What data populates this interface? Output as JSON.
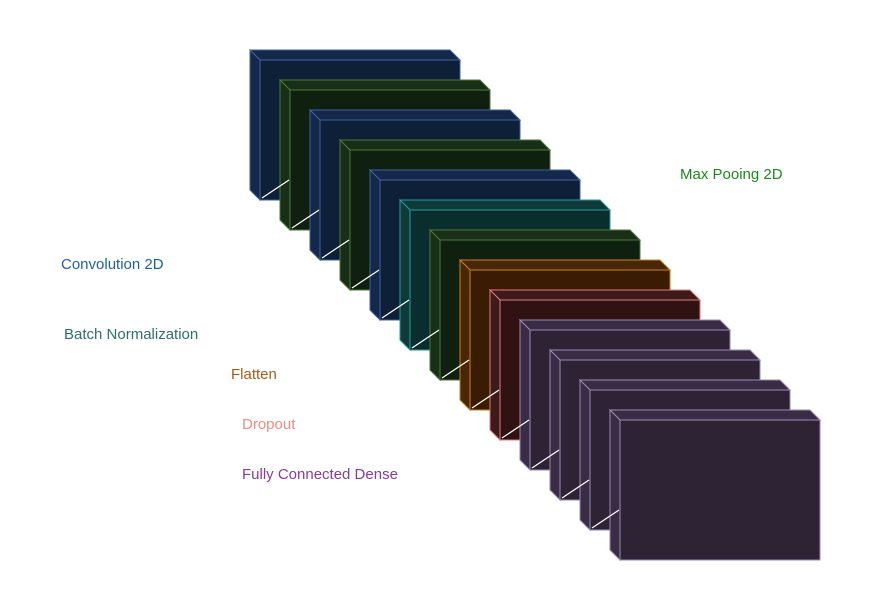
{
  "labels": {
    "max_pooling": "Max Pooing 2D",
    "convolution": "Convolution 2D",
    "batch_norm": "Batch Normalization",
    "flatten": "Flatten",
    "dropout": "Dropout",
    "dense": "Fully Connected Dense"
  },
  "colors": {
    "max_pooling": "#1a8a1a",
    "convolution": "#1f5f9f",
    "batch_norm": "#2f6f6a",
    "flatten": "#a85a1a",
    "dropout": "#f08a80",
    "dense": "#8a3a9a",
    "connector": "#ffffff"
  },
  "layers": [
    {
      "type": "convolution",
      "face": "#0e1f38",
      "side": "#14284a",
      "edge": "#3f62a0"
    },
    {
      "type": "max_pooling",
      "face": "#102010",
      "side": "#182e16",
      "edge": "#4a7a3a"
    },
    {
      "type": "convolution",
      "face": "#0e1f38",
      "side": "#14284a",
      "edge": "#3f62a0"
    },
    {
      "type": "max_pooling",
      "face": "#102010",
      "side": "#182e16",
      "edge": "#4a7a3a"
    },
    {
      "type": "convolution",
      "face": "#0e1f38",
      "side": "#14284a",
      "edge": "#3f62a0"
    },
    {
      "type": "batch_norm",
      "face": "#0a2e2e",
      "side": "#0e3a3a",
      "edge": "#2a9a9a"
    },
    {
      "type": "max_pooling",
      "face": "#102010",
      "side": "#182e16",
      "edge": "#4a7a3a"
    },
    {
      "type": "flatten",
      "face": "#3a1c05",
      "side": "#4a2608",
      "edge": "#c8801a"
    },
    {
      "type": "dropout",
      "face": "#301212",
      "side": "#3e1a1a",
      "edge": "#e07a7a"
    },
    {
      "type": "dense",
      "face": "#2e2235",
      "side": "#3a2c45",
      "edge": "#9a8ab5"
    },
    {
      "type": "dense",
      "face": "#2e2235",
      "side": "#3a2c45",
      "edge": "#9a8ab5"
    },
    {
      "type": "dense",
      "face": "#2e2235",
      "side": "#3a2c45",
      "edge": "#9a8ab5"
    },
    {
      "type": "dense",
      "face": "#2e2235",
      "side": "#3a2c45",
      "edge": "#9a8ab5"
    }
  ]
}
